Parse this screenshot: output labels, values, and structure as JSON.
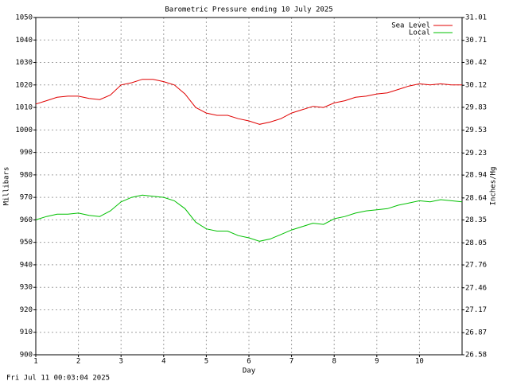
{
  "chart_data": {
    "type": "line",
    "title": "Barometric Pressure ending 10 July 2025",
    "xlabel": "Day",
    "ylabel": "Millibars",
    "y2label": "Inches/Hg",
    "footer": "Fri Jul 11 00:03:04 2025",
    "grid": true,
    "legend": "top-right",
    "xlim": [
      1,
      11
    ],
    "xticks": [
      1,
      2,
      3,
      4,
      5,
      6,
      7,
      8,
      9,
      10
    ],
    "ylim": [
      900,
      1050
    ],
    "yticks": [
      900,
      910,
      920,
      930,
      940,
      950,
      960,
      970,
      980,
      990,
      1000,
      1010,
      1020,
      1030,
      1040,
      1050
    ],
    "y2lim": [
      26.58,
      31.01
    ],
    "y2ticks": [
      26.58,
      26.87,
      27.17,
      27.46,
      27.76,
      28.05,
      28.35,
      28.64,
      28.94,
      29.23,
      29.53,
      29.83,
      30.12,
      30.42,
      30.71,
      31.01
    ],
    "x": [
      1,
      1.25,
      1.5,
      1.75,
      2,
      2.25,
      2.5,
      2.75,
      3,
      3.25,
      3.5,
      3.75,
      4,
      4.25,
      4.5,
      4.75,
      5,
      5.25,
      5.5,
      5.75,
      6,
      6.25,
      6.5,
      6.75,
      7,
      7.25,
      7.5,
      7.75,
      8,
      8.25,
      8.5,
      8.75,
      9,
      9.25,
      9.5,
      9.75,
      10,
      10.25,
      10.5,
      10.75,
      11
    ],
    "series": [
      {
        "name": "Sea Level",
        "color": "#e00000",
        "values": [
          1011.5,
          1013,
          1014.5,
          1015,
          1015,
          1014,
          1013.5,
          1015.5,
          1020,
          1021,
          1022.5,
          1022.5,
          1021.5,
          1020,
          1016,
          1010,
          1007.5,
          1006.5,
          1006.5,
          1005,
          1004,
          1002.5,
          1003.5,
          1005,
          1007.5,
          1009,
          1010.5,
          1010,
          1012,
          1013,
          1014.5,
          1015,
          1016,
          1016.5,
          1018,
          1019.5,
          1020.5,
          1020,
          1020.5,
          1020,
          1020
        ]
      },
      {
        "name": "Local",
        "color": "#00c000",
        "values": [
          960,
          961.5,
          962.5,
          962.5,
          963,
          962,
          961.5,
          964,
          968,
          970,
          971,
          970.5,
          970,
          968.5,
          965,
          959,
          956,
          955,
          955,
          953,
          952,
          950.5,
          951.5,
          953.5,
          955.5,
          957,
          958.5,
          958,
          960.5,
          961.5,
          963,
          964,
          964.5,
          965,
          966.5,
          967.5,
          968.5,
          968,
          969,
          968.5,
          968
        ]
      }
    ]
  }
}
